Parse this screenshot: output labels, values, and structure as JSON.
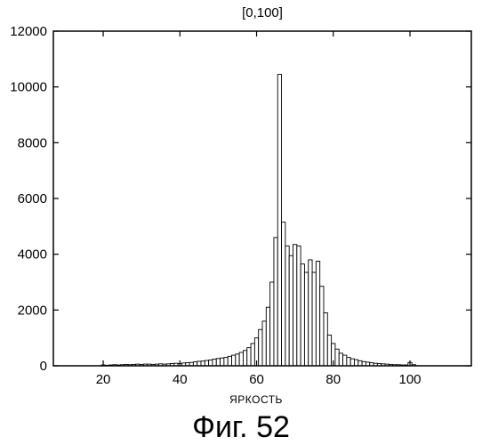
{
  "figure": {
    "caption": "Фиг. 52"
  },
  "chart_data": {
    "type": "bar",
    "title": "[0,100]",
    "subtitle": "",
    "xlabel": "ЯРКОСТЬ",
    "ylabel": "",
    "xlim": [
      7,
      116
    ],
    "ylim": [
      0,
      12000
    ],
    "xticks": [
      20,
      40,
      60,
      80,
      100
    ],
    "yticks": [
      0,
      2000,
      4000,
      6000,
      8000,
      10000,
      12000
    ],
    "grid": false,
    "bin_width": 1,
    "series": [
      {
        "x": [
          20,
          21,
          22,
          23,
          24,
          25,
          26,
          27,
          28,
          29,
          30,
          31,
          32,
          33,
          34,
          35,
          36,
          37,
          38,
          39,
          40,
          41,
          42,
          43,
          44,
          45,
          46,
          47,
          48,
          49,
          50,
          51,
          52,
          53,
          54,
          55,
          56,
          57,
          58,
          59,
          60,
          61,
          62,
          63,
          64,
          65,
          66,
          67,
          68,
          69,
          70,
          71,
          72,
          73,
          74,
          75,
          76,
          77,
          78,
          79,
          80,
          81,
          82,
          83,
          84,
          85,
          86,
          87,
          88,
          89,
          90,
          91,
          92,
          93,
          94,
          95,
          96,
          97,
          98,
          99,
          100,
          101
        ],
        "values": [
          30,
          20,
          30,
          40,
          30,
          40,
          50,
          40,
          50,
          60,
          50,
          60,
          60,
          50,
          60,
          70,
          60,
          70,
          80,
          90,
          80,
          100,
          110,
          120,
          140,
          160,
          170,
          190,
          210,
          240,
          260,
          280,
          300,
          340,
          380,
          420,
          480,
          550,
          650,
          800,
          1000,
          1300,
          1600,
          2100,
          3000,
          4600,
          10450,
          5150,
          4300,
          3950,
          4350,
          4300,
          3650,
          3350,
          3800,
          3350,
          3750,
          2850,
          1900,
          1100,
          800,
          600,
          450,
          380,
          300,
          250,
          220,
          180,
          150,
          130,
          110,
          90,
          80,
          70,
          60,
          50,
          40,
          40,
          30,
          30,
          120,
          40
        ]
      }
    ]
  }
}
